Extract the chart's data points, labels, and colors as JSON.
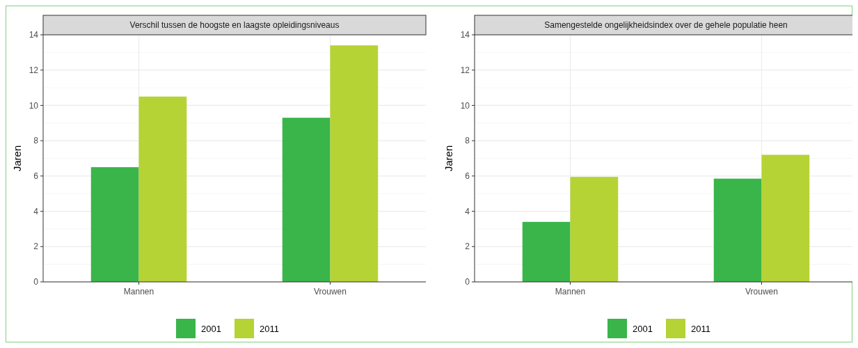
{
  "chart_data": [
    {
      "type": "bar",
      "title": "Verschil tussen de hoogste en laagste opleidingsniveaus",
      "ylabel": "Jaren",
      "categories": [
        "Mannen",
        "Vrouwen"
      ],
      "series": [
        {
          "name": "2001",
          "color": "#39b54a",
          "values": [
            6.5,
            9.3
          ]
        },
        {
          "name": "2011",
          "color": "#b5d334",
          "values": [
            10.5,
            13.4
          ]
        }
      ],
      "ylim": [
        0,
        14
      ],
      "yticks": [
        0,
        2,
        4,
        6,
        8,
        10,
        12,
        14
      ],
      "grid": true,
      "legend": "bottom"
    },
    {
      "type": "bar",
      "title": "Samengestelde ongelijkheidsindex over de gehele populatie heen",
      "ylabel": "Jaren",
      "categories": [
        "Mannen",
        "Vrouwen"
      ],
      "series": [
        {
          "name": "2001",
          "color": "#39b54a",
          "values": [
            3.4,
            5.85
          ]
        },
        {
          "name": "2011",
          "color": "#b5d334",
          "values": [
            5.95,
            7.2
          ]
        }
      ],
      "ylim": [
        0,
        14
      ],
      "yticks": [
        0,
        2,
        4,
        6,
        8,
        10,
        12,
        14
      ],
      "grid": true,
      "legend": "bottom"
    }
  ]
}
